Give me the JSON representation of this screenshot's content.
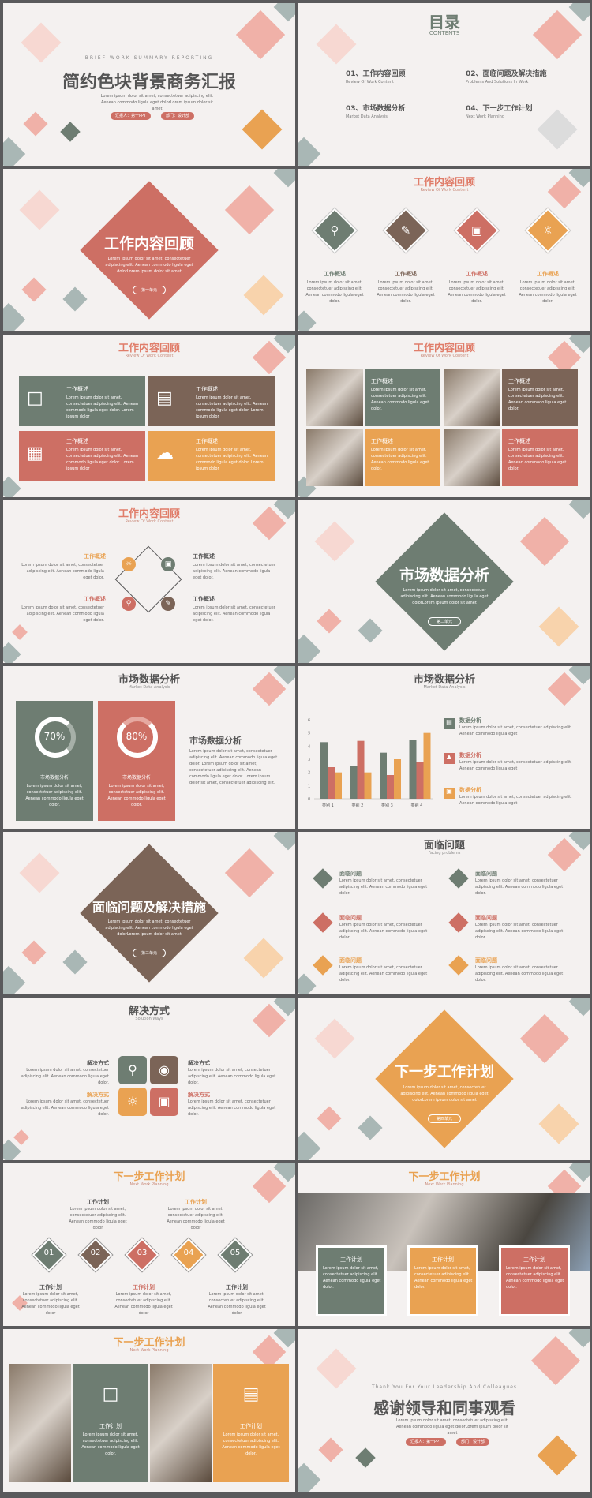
{
  "colors": {
    "green": "#6e7d72",
    "red": "#cd6f64",
    "brown": "#7b6457",
    "orange": "#e9a252",
    "pink": "#f5d4cd",
    "bg": "#f4f1f0"
  },
  "s1": {
    "kicker": "BRIEF WORK SUMMARY REPORTING",
    "title": "简约色块背景商务汇报",
    "lorem": "Lorem ipsum dolor sit amet, consectetuer adipiscing elit. Aenean commodo ligula eget dolorLorem ipsum dolor sit amet",
    "pill1": "汇报人：第一PPT",
    "pill2": "部门：设计部"
  },
  "s2": {
    "title": "目录",
    "sub": "CONTENTS",
    "items": [
      {
        "label": "01、工作内容回顾",
        "en": "Review Of Work Content"
      },
      {
        "label": "02、面临问题及解决措施",
        "en": "Problems And Solutions In Work"
      },
      {
        "label": "03、市场数据分析",
        "en": "Market Data Analysis"
      },
      {
        "label": "04、下一步工作计划",
        "en": "Next Work Planning"
      }
    ]
  },
  "s3": {
    "title": "工作内容回顾",
    "lorem": "Lorem ipsum dolor sit amet, consectetuer adipiscing elit. Aenean commodo ligula eget dolorLorem ipsum dolor sit amet",
    "pill": "第一单元"
  },
  "s4": {
    "title": "工作内容回顾",
    "sub": "Review Of Work Content",
    "items": [
      {
        "label": "工作概述",
        "icon": "magnifier-icon"
      },
      {
        "label": "工作概述",
        "icon": "pencil-icon"
      },
      {
        "label": "工作概述",
        "icon": "monitor-icon"
      },
      {
        "label": "工作概述",
        "icon": "lightbulb-icon"
      }
    ],
    "lorem": "Lorem ipsum dolor sit amet, consectetuer adipiscing elit. Aenean commodo ligula eget dolor."
  },
  "s5": {
    "title": "工作内容回顾",
    "sub": "Review Of Work Content",
    "label": "工作概述",
    "lorem": "Lorem ipsum dolor sit amet, consectetuer adipiscing elit. Aenean commodo ligula eget dolor. Lorem ipsum dolor"
  },
  "s6": {
    "title": "工作内容回顾",
    "sub": "Review Of Work Content",
    "label": "工作概述",
    "lorem": "Lorem ipsum dolor sit amet, consectetuer adipiscing elit. Aenean commodo ligula eget dolor."
  },
  "s7": {
    "title": "工作内容回顾",
    "sub": "Review Of Work Content",
    "label": "工作概述",
    "lorem": "Lorem ipsum dolor sit amet, consectetuer adipiscing elit. Aenean commodo ligula eget dolor."
  },
  "s8": {
    "title": "市场数据分析",
    "lorem": "Lorem ipsum dolor sit amet, consectetuer adipiscing elit. Aenean commodo ligula eget dolorLorem ipsum dolor sit amet",
    "pill": "第二单元"
  },
  "s9": {
    "title": "市场数据分析",
    "sub": "Market Data Analysis",
    "p1": "70%",
    "p2": "80%",
    "label": "市场数据分析",
    "lorem": "Lorem ipsum dolor sit amet, consectetuer adipiscing elit. Aenean commodo ligula eget dolor.",
    "side_title": "市场数据分析",
    "side_lorem": "Lorem ipsum dolor sit amet, consectetuer adipiscing elit. Aenean commodo ligula eget dolor. Lorem ipsum dolor sit amet, consectetuer adipiscing elit. Aenean commodo ligula eget dolor. Lorem ipsum dolor sit amet, consectetuer adipiscing elit."
  },
  "s10": {
    "title": "市场数据分析",
    "sub": "Market Data Analysis",
    "label": "数据分析",
    "lorem": "Lorem ipsum dolor sit amet, consectetuer adipiscing elit. Aenean commodo ligula eget"
  },
  "chart_data": {
    "type": "bar",
    "categories": [
      "类别 1",
      "类别 2",
      "类别 3",
      "类别 4"
    ],
    "yticks": [
      "0",
      "1",
      "2",
      "3",
      "4",
      "5",
      "6"
    ],
    "ylim": [
      0,
      6
    ],
    "series": [
      {
        "values": [
          4.3,
          2.5,
          3.5,
          4.5
        ],
        "color": "#6e7d72"
      },
      {
        "values": [
          2.4,
          4.4,
          1.8,
          2.8
        ],
        "color": "#cd6f64"
      },
      {
        "values": [
          2,
          2,
          3,
          5
        ]
      }
    ]
  },
  "s11": {
    "title": "面临问题及解决措施",
    "lorem": "Lorem ipsum dolor sit amet, consectetuer adipiscing elit. Aenean commodo ligula eget dolorLorem ipsum dolor sit amet",
    "pill": "第三单元"
  },
  "s12": {
    "title": "面临问题",
    "sub": "Facing problems",
    "label": "面临问题",
    "lorem": "Lorem ipsum dolor sit amet, consectetuer adipiscing elit. Aenean commodo ligula eget dolor."
  },
  "s13": {
    "title": "解决方式",
    "sub": "Solution Ways",
    "label": "解决方式",
    "lorem": "Lorem ipsum dolor sit amet, consectetuer adipiscing elit. Aenean commodo ligula eget dolor."
  },
  "s14": {
    "title": "下一步工作计划",
    "lorem": "Lorem ipsum dolor sit amet, consectetuer adipiscing elit. Aenean commodo ligula eget dolorLorem ipsum dolor sit amet",
    "pill": "第四单元"
  },
  "s15": {
    "title": "下一步工作计划",
    "sub": "Next Work Planning",
    "label": "工作计划",
    "nums": [
      "01",
      "02",
      "03",
      "04",
      "05"
    ],
    "lorem": "Lorem ipsum dolor sit amet, consectetuer adipiscing elit. Aenean commodo ligula eget dolor"
  },
  "s16": {
    "title": "下一步工作计划",
    "sub": "Next Work Planning",
    "label": "工作计划",
    "lorem": "Lorem ipsum dolor sit amet, consectetuer adipiscing elit. Aenean commodo ligula eget dolor."
  },
  "s17": {
    "title": "下一步工作计划",
    "sub": "Next Work Planning",
    "label": "工作计划",
    "lorem": "Lorem ipsum dolor sit amet, consectetuer adipiscing elit. Aenean commodo ligula eget dolor."
  },
  "s18": {
    "kicker": "Thank You For Your Leadership And Colleagues",
    "title": "感谢领导和同事观看",
    "lorem": "Lorem ipsum dolor sit amet, consectetuer adipiscing elit. Aenean commodo ligula eget dolorLorem ipsum dolor sit amet",
    "pill1": "汇报人：第一PPT",
    "pill2": "部门：设计部"
  }
}
